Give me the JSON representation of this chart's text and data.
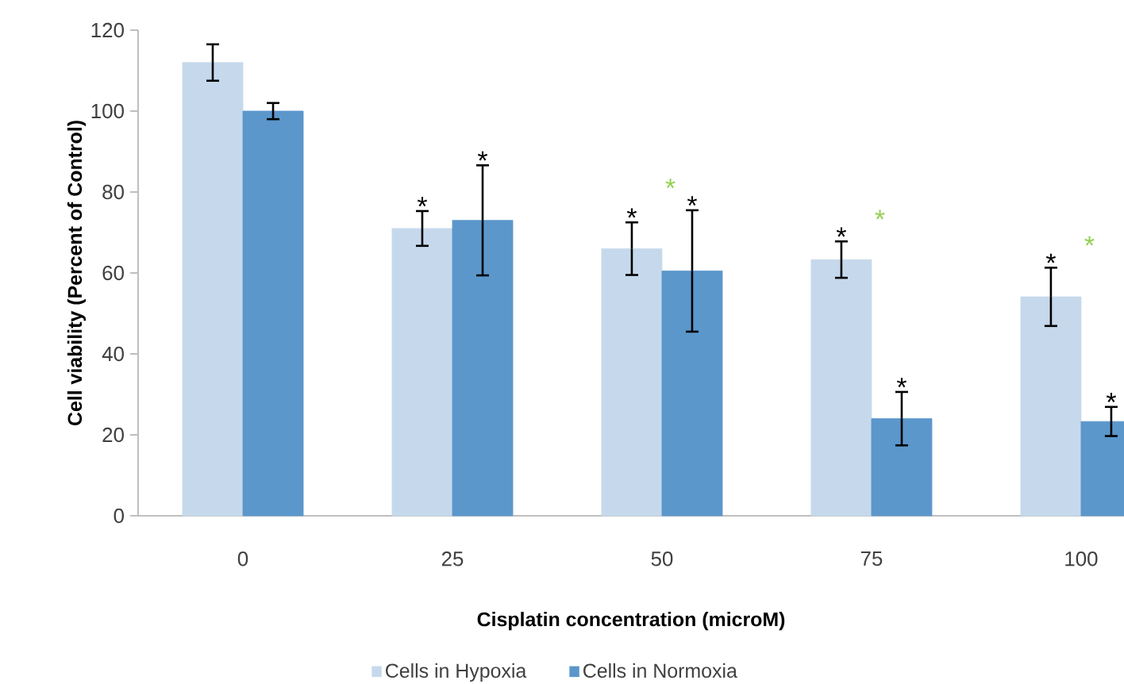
{
  "chart_data": {
    "type": "bar",
    "xlabel": "Cisplatin concentration (microM)",
    "ylabel": "Cell viability (Percent of Control)",
    "categories": [
      "0",
      "25",
      "50",
      "75",
      "100"
    ],
    "series": [
      {
        "name": "Cells in Hypoxia",
        "color": "#c6d9ec",
        "values": [
          112,
          71,
          66,
          63.3,
          54.1
        ],
        "errors": [
          4.5,
          4.3,
          6.5,
          4.5,
          7.2
        ],
        "value_labels": [
          null,
          "*",
          "*",
          "*",
          "*"
        ]
      },
      {
        "name": "Cells in Normoxia",
        "color": "#5b97cb",
        "values": [
          100,
          73,
          60.5,
          24,
          23.3
        ],
        "errors": [
          2,
          13.6,
          15,
          6.6,
          3.6
        ],
        "value_labels": [
          null,
          "*",
          "*",
          "*",
          "*"
        ]
      }
    ],
    "annotations": [
      "*",
      "*",
      "*"
    ],
    "ylim": [
      0,
      120
    ],
    "yticks": [
      0,
      20,
      40,
      60,
      80,
      100,
      120
    ],
    "grid": false,
    "legend": "bottom"
  }
}
